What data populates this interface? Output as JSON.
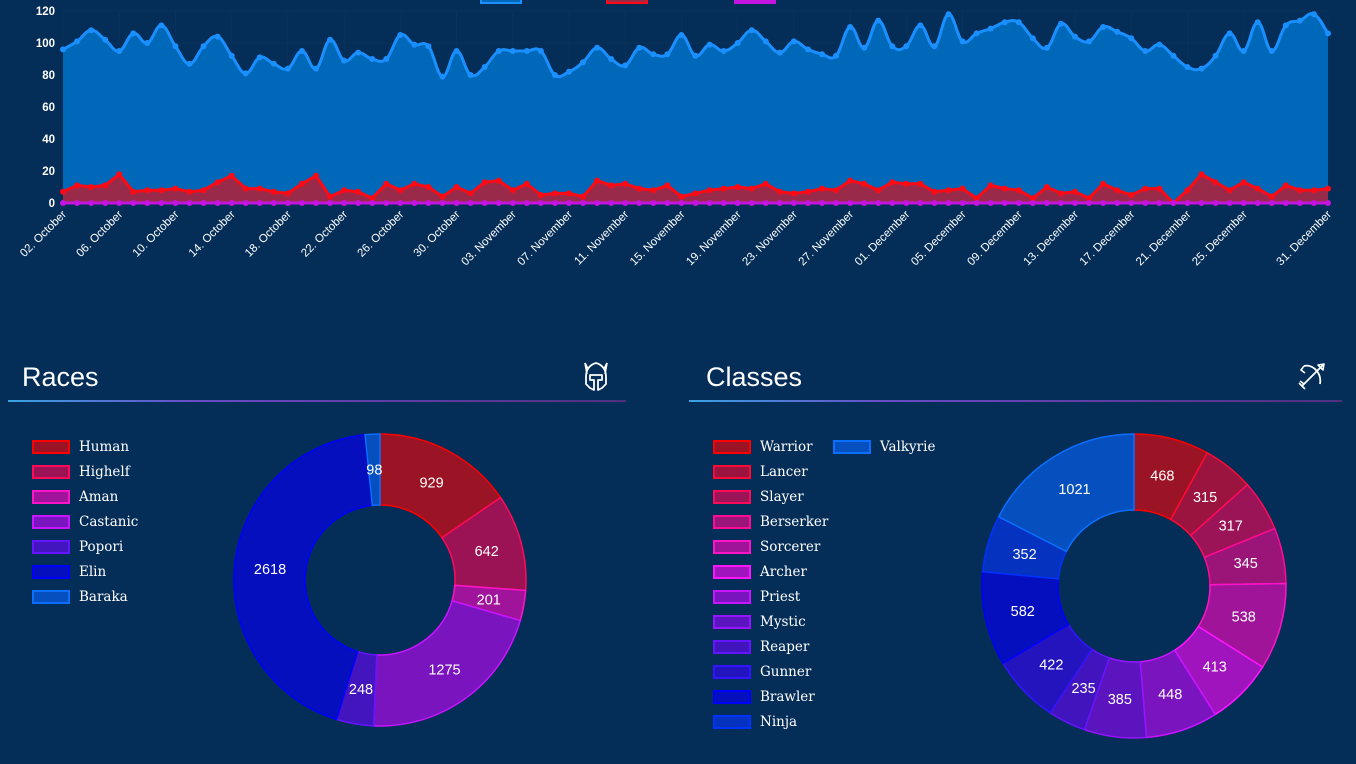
{
  "chart_data": [
    {
      "type": "area",
      "title": "",
      "xlabel": "",
      "ylabel": "",
      "ylim": [
        0,
        120
      ],
      "yticks": [
        0,
        20,
        40,
        60,
        80,
        100,
        120
      ],
      "grid": true,
      "legend_position": "top-center",
      "x_start": "02. October",
      "x_tick_labels": [
        "02. October",
        "06. October",
        "10. October",
        "14. October",
        "18. October",
        "22. October",
        "26. October",
        "30. October",
        "03. November",
        "07. November",
        "11. November",
        "15. November",
        "19. November",
        "23. November",
        "27. November",
        "01. December",
        "05. December",
        "09. December",
        "13. December",
        "17. December",
        "21. December",
        "25. December",
        "31. December"
      ],
      "x_tick_indices": [
        0,
        4,
        8,
        12,
        16,
        20,
        24,
        28,
        32,
        36,
        40,
        44,
        48,
        52,
        56,
        60,
        64,
        68,
        72,
        76,
        80,
        84,
        90
      ],
      "series": [
        {
          "name": "",
          "color": "#1a8fff",
          "fill": "#0068b8",
          "values": [
            96,
            101,
            108,
            102,
            95,
            106,
            100,
            111,
            98,
            87,
            98,
            104,
            92,
            81,
            91,
            87,
            84,
            95,
            84,
            102,
            89,
            94,
            90,
            90,
            105,
            99,
            98,
            79,
            95,
            80,
            85,
            95,
            95,
            95,
            95,
            80,
            82,
            88,
            97,
            90,
            86,
            97,
            93,
            93,
            105,
            92,
            99,
            95,
            100,
            108,
            101,
            94,
            101,
            96,
            93,
            92,
            110,
            97,
            114,
            98,
            98,
            111,
            98,
            118,
            101,
            106,
            109,
            113,
            113,
            103,
            97,
            112,
            104,
            101,
            110,
            107,
            103,
            95,
            99,
            92,
            85,
            84,
            92,
            106,
            95,
            113,
            95,
            111,
            114,
            118,
            106
          ]
        },
        {
          "name": "",
          "color": "#ff0a14",
          "fill": "#9a2a4a",
          "values": [
            7,
            11,
            10,
            11,
            18,
            7,
            8,
            8,
            9,
            7,
            8,
            13,
            17,
            9,
            9,
            7,
            6,
            12,
            17,
            4,
            8,
            7,
            3,
            12,
            8,
            12,
            10,
            4,
            10,
            6,
            13,
            14,
            8,
            12,
            5,
            6,
            6,
            4,
            14,
            11,
            12,
            9,
            8,
            11,
            4,
            6,
            8,
            9,
            10,
            9,
            12,
            7,
            6,
            7,
            9,
            8,
            14,
            12,
            8,
            13,
            12,
            12,
            7,
            8,
            9,
            3,
            11,
            9,
            8,
            3,
            10,
            6,
            7,
            3,
            12,
            8,
            5,
            9,
            9,
            0,
            8,
            18,
            13,
            8,
            13,
            9,
            4,
            11,
            8,
            8,
            9
          ]
        },
        {
          "name": "",
          "color": "#c414e0",
          "fill": "#c414e0",
          "values": [
            0,
            0,
            0,
            0,
            0,
            0,
            0,
            0,
            0,
            0,
            0,
            0,
            0,
            0,
            0,
            0,
            0,
            0,
            0,
            0,
            0,
            0,
            0,
            0,
            0,
            0,
            0,
            0,
            0,
            0,
            0,
            0,
            0,
            0,
            0,
            0,
            0,
            0,
            0,
            0,
            0,
            0,
            0,
            0,
            0,
            0,
            0,
            0,
            0,
            0,
            0,
            0,
            0,
            0,
            0,
            0,
            0,
            0,
            0,
            0,
            0,
            0,
            0,
            0,
            0,
            0,
            0,
            0,
            0,
            0,
            0,
            0,
            0,
            0,
            0,
            0,
            0,
            0,
            0,
            0,
            0,
            0,
            0,
            0,
            0,
            0,
            0,
            0,
            0,
            0,
            0
          ]
        }
      ]
    },
    {
      "type": "pie",
      "title": "Races",
      "legend_position": "left",
      "categories": [
        "Human",
        "Highelf",
        "Aman",
        "Castanic",
        "Popori",
        "Elin",
        "Baraka"
      ],
      "values": [
        929,
        642,
        201,
        1275,
        248,
        2618,
        98
      ],
      "fill_colors": [
        "#9b1426",
        "#9b1355",
        "#a0139b",
        "#7a14be",
        "#4215be",
        "#050fbe",
        "#0550be"
      ],
      "border_colors": [
        "#ff0000",
        "#ff0a5a",
        "#ff14c8",
        "#c814ff",
        "#6414ff",
        "#0000ff",
        "#0a6eff"
      ]
    },
    {
      "type": "pie",
      "title": "Classes",
      "legend_position": "left",
      "categories": [
        "Warrior",
        "Lancer",
        "Slayer",
        "Berserker",
        "Sorcerer",
        "Archer",
        "Priest",
        "Mystic",
        "Reaper",
        "Gunner",
        "Brawler",
        "Ninja",
        "Valkyrie"
      ],
      "values": [
        468,
        315,
        317,
        345,
        538,
        413,
        448,
        385,
        235,
        422,
        582,
        352,
        1021
      ],
      "fill_colors": [
        "#9b1426",
        "#9b1440",
        "#9b1458",
        "#9b1478",
        "#a0149a",
        "#a014be",
        "#7a14be",
        "#5c14be",
        "#4214be",
        "#2314be",
        "#050fbe",
        "#0532be",
        "#0550be"
      ],
      "border_colors": [
        "#ff0000",
        "#ff0a32",
        "#ff0a5a",
        "#ff0a96",
        "#ff14c8",
        "#ff14ff",
        "#c814ff",
        "#9614ff",
        "#6414ff",
        "#3214ff",
        "#0000ff",
        "#0032ff",
        "#0a6eff"
      ]
    }
  ],
  "races": {
    "title": "Races",
    "icon": "helmet-icon"
  },
  "classes": {
    "title": "Classes",
    "icon": "bow-arrow-icon"
  },
  "colors": {
    "background": "#042d58",
    "gridline": "#0a3560",
    "text": "#ffffff"
  }
}
